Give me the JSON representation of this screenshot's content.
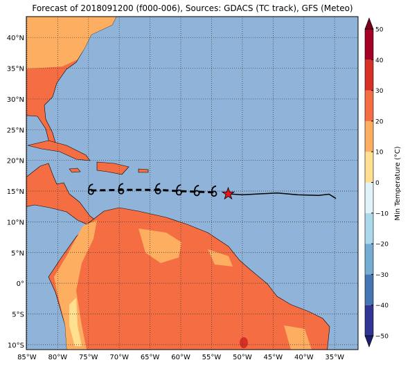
{
  "chart_data": {
    "type": "map",
    "title": "Forecast of 2018091200 (f000-006), Sources: GDACS (TC track), GFS (Meteo)",
    "xlim": [
      -85.1,
      -31.2
    ],
    "ylim": [
      -10.8,
      43.4
    ],
    "xticks": [
      {
        "value": -85,
        "label": "85°W"
      },
      {
        "value": -80,
        "label": "80°W"
      },
      {
        "value": -75,
        "label": "75°W"
      },
      {
        "value": -70,
        "label": "70°W"
      },
      {
        "value": -65,
        "label": "65°W"
      },
      {
        "value": -60,
        "label": "60°W"
      },
      {
        "value": -55,
        "label": "55°W"
      },
      {
        "value": -50,
        "label": "50°W"
      },
      {
        "value": -45,
        "label": "45°W"
      },
      {
        "value": -40,
        "label": "40°W"
      },
      {
        "value": -35,
        "label": "35°W"
      }
    ],
    "yticks": [
      {
        "value": -10,
        "label": "10°S"
      },
      {
        "value": -5,
        "label": "5°S"
      },
      {
        "value": 0,
        "label": "0°"
      },
      {
        "value": 5,
        "label": "5°N"
      },
      {
        "value": 10,
        "label": "10°N"
      },
      {
        "value": 15,
        "label": "15°N"
      },
      {
        "value": 20,
        "label": "20°N"
      },
      {
        "value": 25,
        "label": "25°N"
      },
      {
        "value": 30,
        "label": "30°N"
      },
      {
        "value": 35,
        "label": "35°N"
      },
      {
        "value": 40,
        "label": "40°N"
      }
    ],
    "grid": true,
    "ocean_color": "#8fb3d9",
    "forecast_track": {
      "lon": [
        -74.6,
        -69.7,
        -63.7,
        -60.3,
        -57.4,
        -54.6
      ],
      "lat": [
        15.1,
        15.2,
        15.2,
        15.0,
        14.9,
        14.8
      ]
    },
    "past_track": {
      "lon": [
        -52.3,
        -50.0,
        -44.3,
        -41.0,
        -37.6,
        -35.9,
        -34.8
      ],
      "lat": [
        14.55,
        14.4,
        14.7,
        14.4,
        14.3,
        14.5,
        13.8
      ]
    },
    "current_position": {
      "lon": -52.3,
      "lat": 14.55
    },
    "colorbar": {
      "label": "Min Temperature (°C)",
      "lim": [
        -50,
        50
      ],
      "ticks": [
        {
          "value": -50,
          "label": "−50"
        },
        {
          "value": -40,
          "label": "−40"
        },
        {
          "value": -30,
          "label": "−30"
        },
        {
          "value": -20,
          "label": "−20"
        },
        {
          "value": -10,
          "label": "−10"
        },
        0,
        10,
        20,
        30,
        40,
        50
      ],
      "colors": [
        "#313695",
        "#4575b4",
        "#74add1",
        "#abd9e9",
        "#e0f3f8",
        "#fee090",
        "#fdae61",
        "#f46d43",
        "#d73027",
        "#a50026"
      ],
      "under_color": "#1f1f6e",
      "over_color": "#7a0019"
    }
  }
}
